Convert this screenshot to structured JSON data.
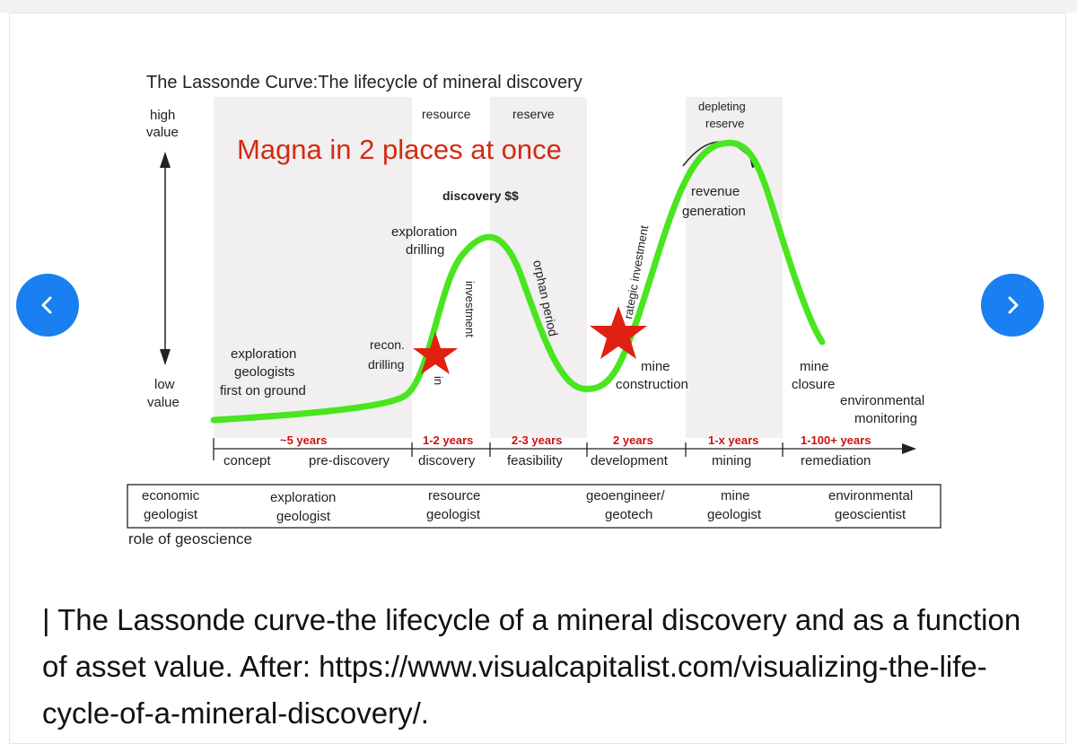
{
  "figure": {
    "title": "The Lassonde Curve:The lifecycle of mineral discovery",
    "overlay_text": "Magna in 2 places at once",
    "value_axis": {
      "high": [
        "high",
        "value"
      ],
      "low": [
        "low",
        "value"
      ]
    },
    "curve_labels": {
      "resource": "resource",
      "reserve": "reserve",
      "depleting_reserve": [
        "depleting",
        "reserve"
      ],
      "discovery": "discovery $$",
      "exploration_drilling": [
        "exploration",
        "drilling"
      ],
      "orphan_period": "orphan period",
      "strategic_investment": "rategic investment",
      "spec_investment": "investment",
      "spec_investment_prefix": "in",
      "revenue_generation": [
        "revenue",
        "generation"
      ],
      "recon_drilling": [
        "recon.",
        "drilling"
      ],
      "exploration_geologists": [
        "exploration",
        "geologists",
        "first on ground"
      ],
      "mine_construction": [
        "mine",
        "construction"
      ],
      "mine_closure": [
        "mine",
        "closure"
      ],
      "environmental_monitoring": [
        "environmental",
        "monitoring"
      ]
    },
    "timeline": [
      {
        "duration": "~5 years",
        "phases": [
          "concept",
          "pre-discovery"
        ]
      },
      {
        "duration": "1-2 years",
        "phases": [
          "discovery"
        ]
      },
      {
        "duration": "2-3 years",
        "phases": [
          "feasibility"
        ]
      },
      {
        "duration": "2 years",
        "phases": [
          "development"
        ]
      },
      {
        "duration": "1-x years",
        "phases": [
          "mining"
        ]
      },
      {
        "duration": "1-100+ years",
        "phases": [
          "remediation"
        ]
      }
    ],
    "roles": [
      [
        "economic",
        "geologist"
      ],
      [
        "exploration",
        "geologist"
      ],
      [
        "resource",
        "geologist"
      ],
      [
        "geoengineer/",
        "geotech"
      ],
      [
        "mine",
        "geologist"
      ],
      [
        "environmental",
        "geoscientist"
      ]
    ],
    "roles_label": "role of geoscience",
    "colors": {
      "curve": "#49e51f",
      "star": "#e02010",
      "overlay_text": "#d42a12",
      "duration": "#cc1111",
      "band": "#f1efef"
    }
  },
  "nav": {
    "prev_icon": "chevron-left-icon",
    "next_icon": "chevron-right-icon",
    "button_color": "#1a7ff0"
  },
  "caption": "| The Lassonde curve-the lifecycle of a mineral discovery and as a function of asset value. After: https://www.visualcapitalist.com/visualizing-the-life-cycle-of-a-mineral-discovery/."
}
